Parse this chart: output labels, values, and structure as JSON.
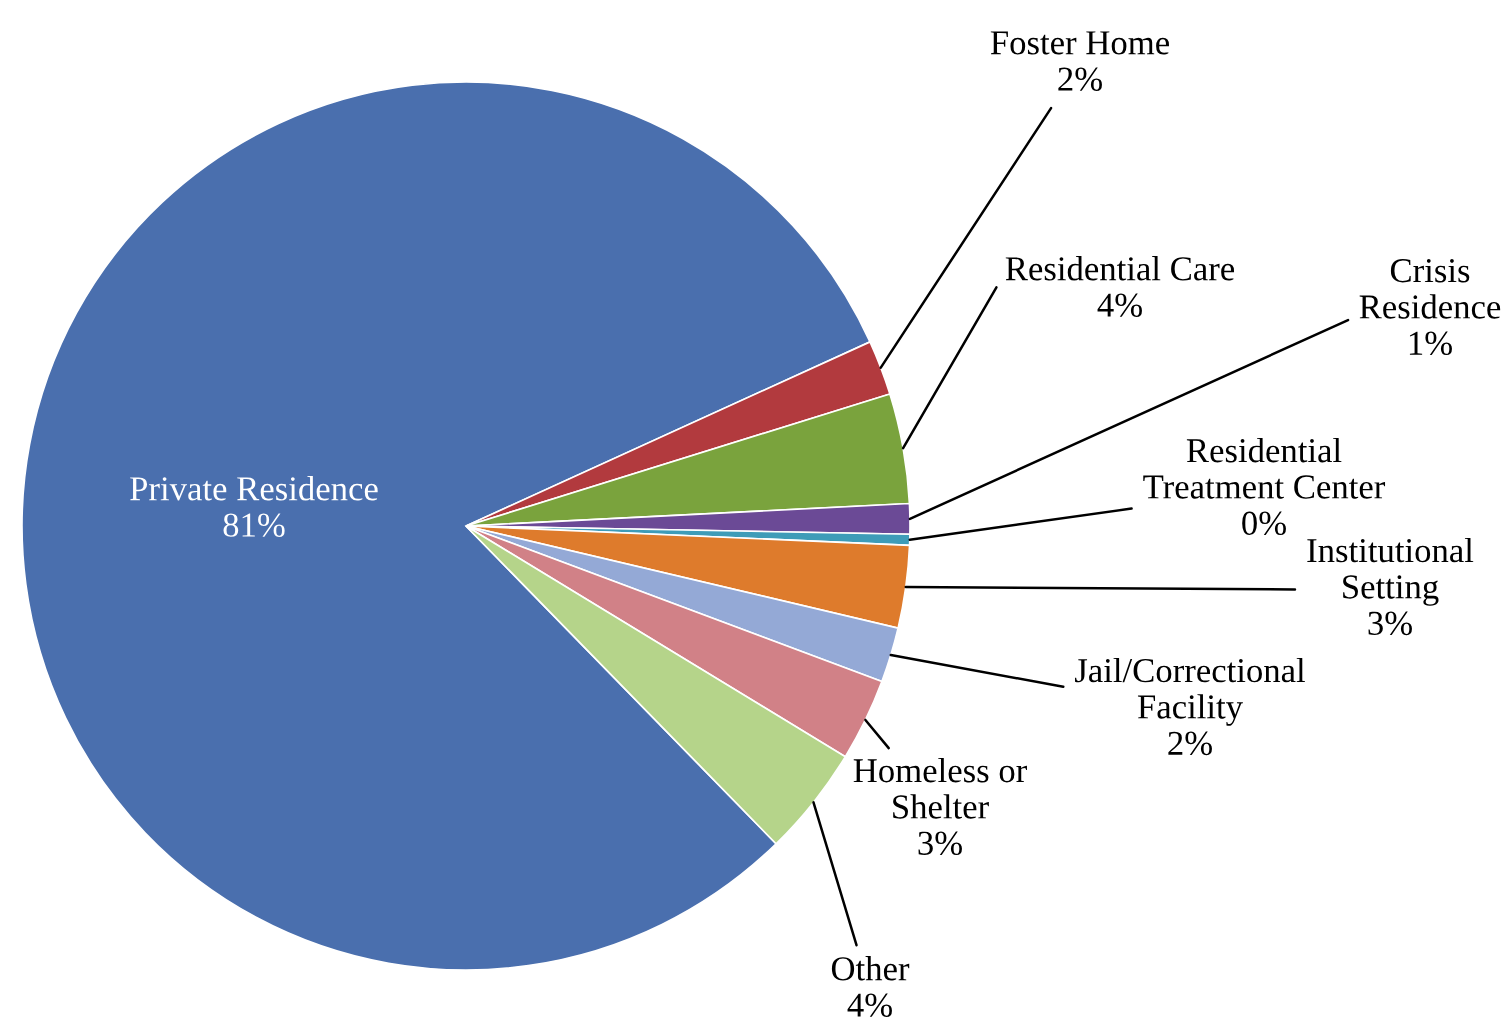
{
  "chart_data": {
    "type": "pie",
    "categories": [
      "Private Residence",
      "Foster Home",
      "Residential Care",
      "Crisis\nResidence",
      "Residential\nTreatment Center",
      "Institutional\nSetting",
      "Jail/Correctional\nFacility",
      "Homeless or\nShelter",
      "Other"
    ],
    "values": [
      80.5,
      2,
      4,
      1.1,
      0.4,
      3,
      2,
      3,
      4
    ],
    "value_labels": [
      "81%",
      "2%",
      "4%",
      "1%",
      "0%",
      "3%",
      "2%",
      "3%",
      "4%"
    ],
    "colors": [
      "#4a6fae",
      "#b23a3e",
      "#7aa33d",
      "#6b4a96",
      "#3e9cb8",
      "#de7b2c",
      "#94a9d6",
      "#d18187",
      "#b5d48a"
    ],
    "legend": false
  }
}
